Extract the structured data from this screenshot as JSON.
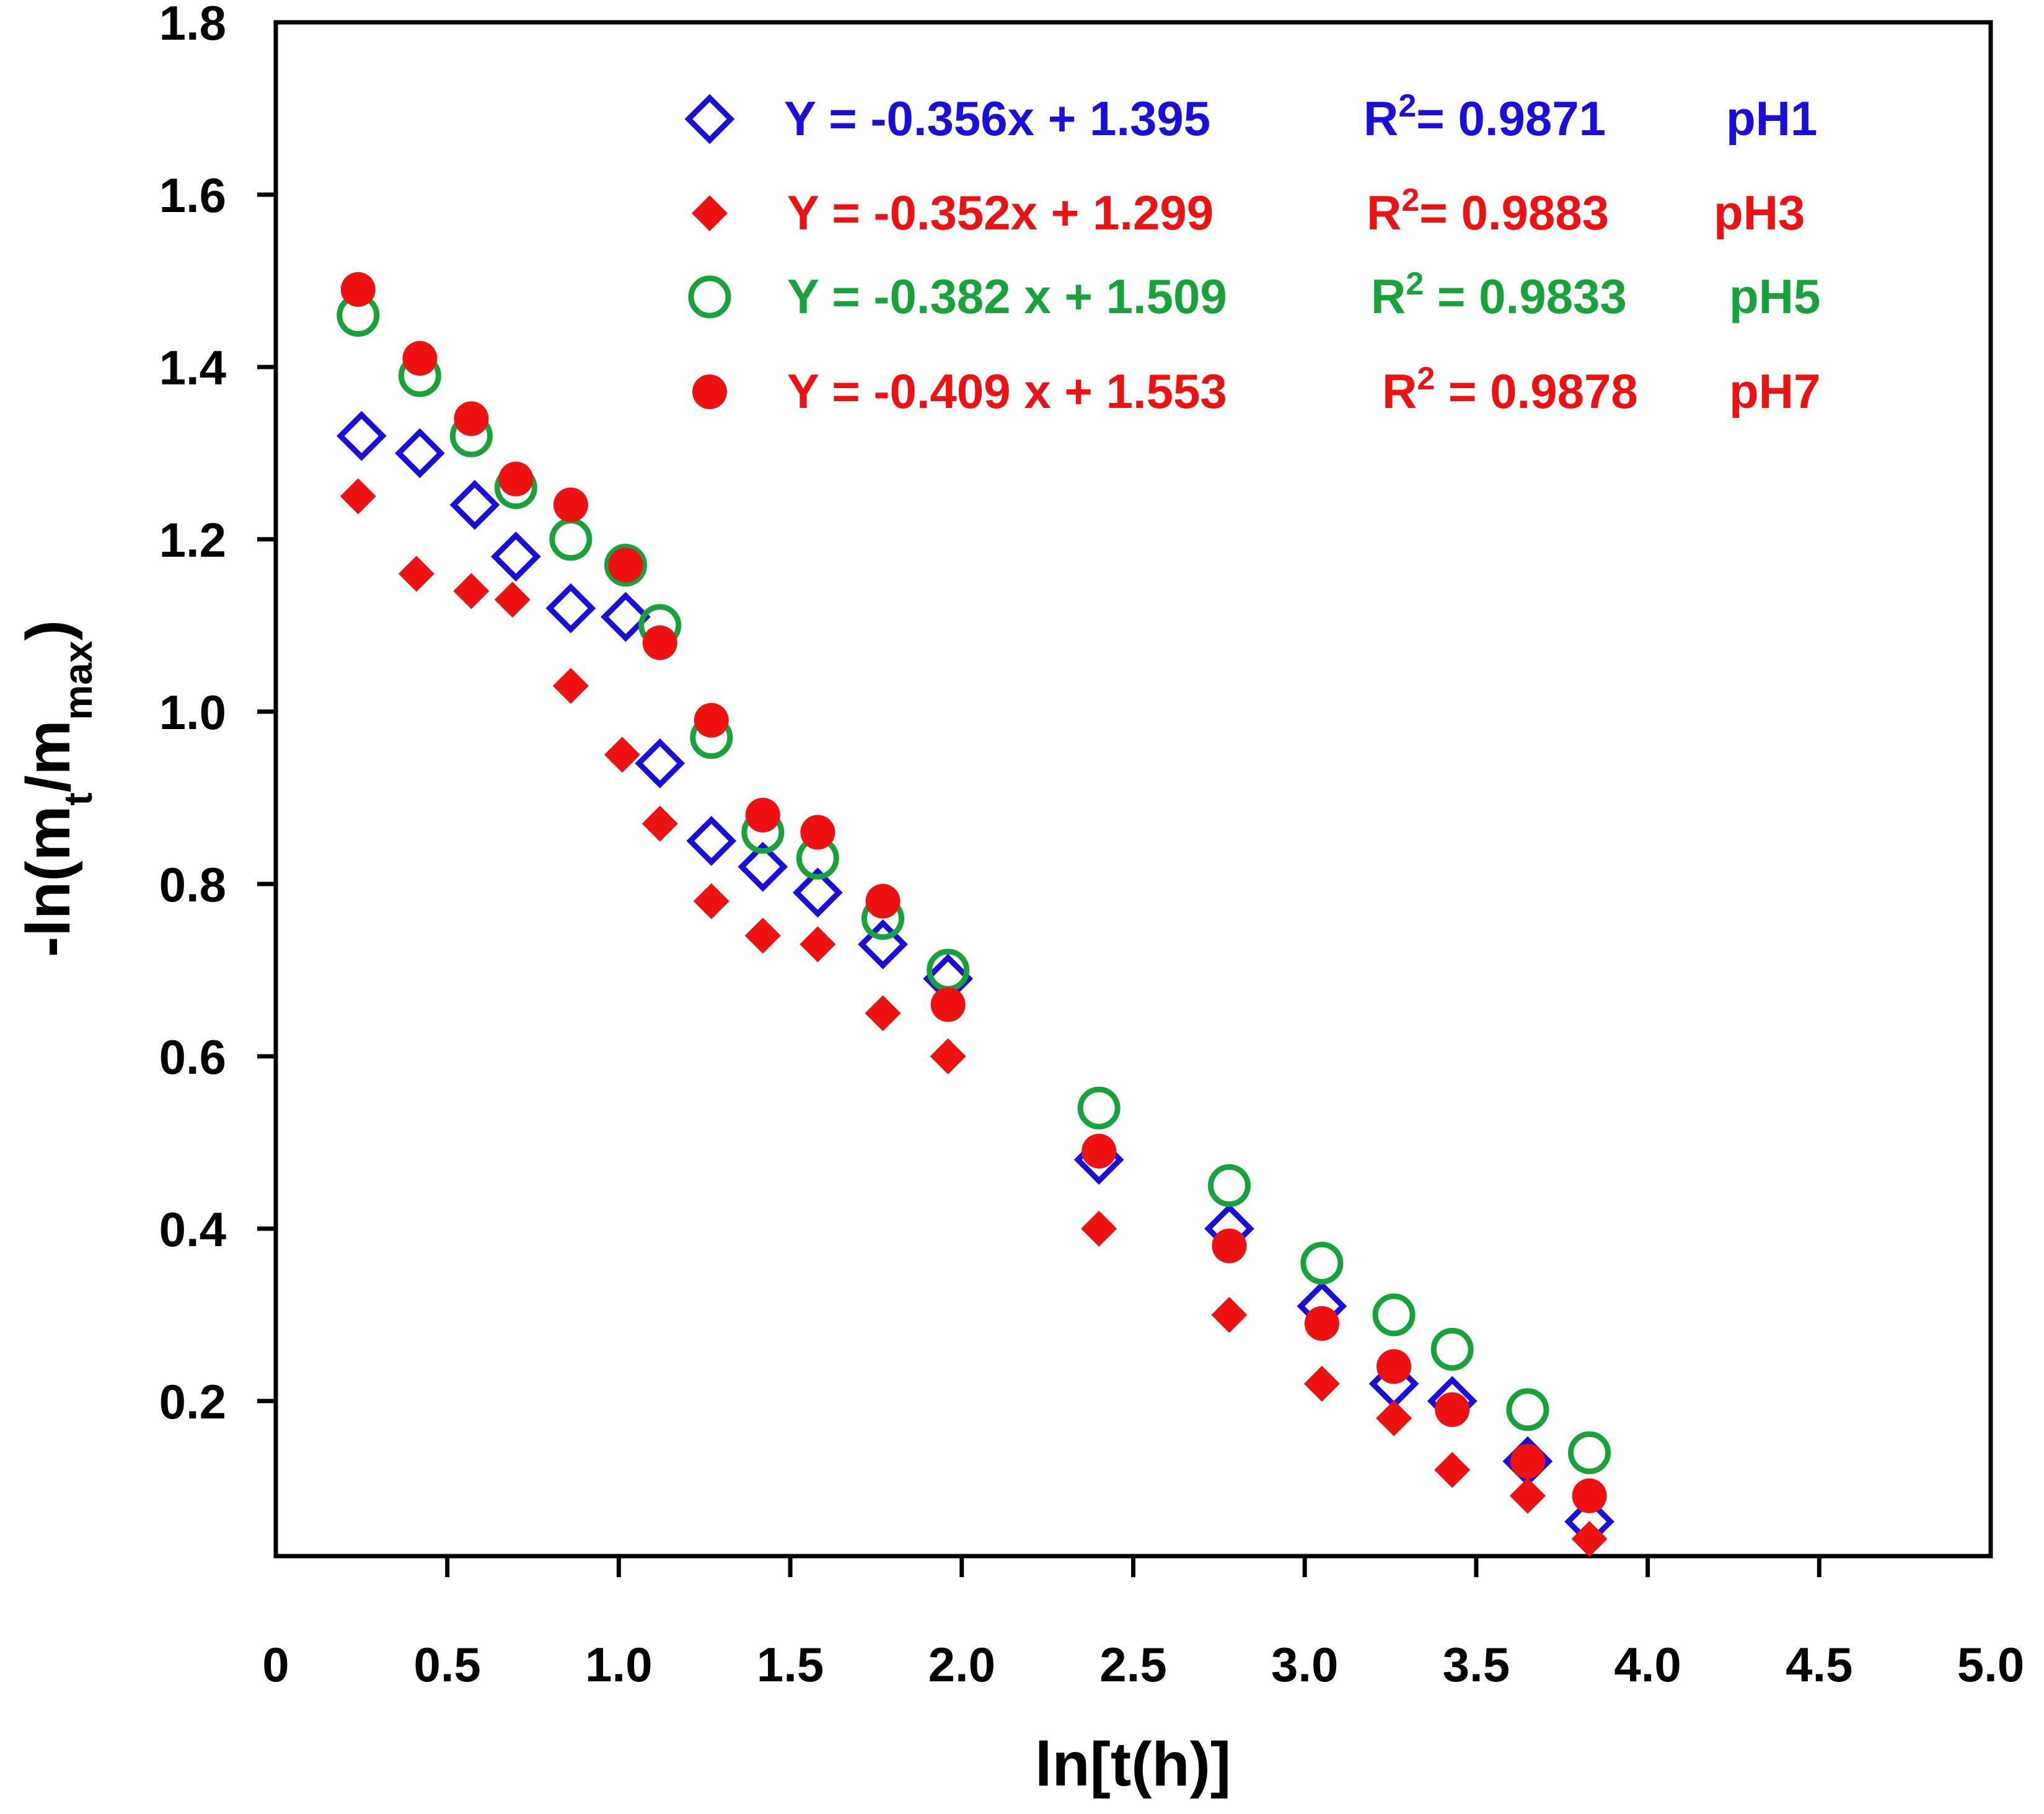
{
  "chart_data": {
    "type": "scatter",
    "xlabel": "ln[t(h)]",
    "ylabel_parts": {
      "pre": "-ln(m",
      "sub1": "t",
      "mid": "/m",
      "sub2": "max",
      "post": ")"
    },
    "xlim": [
      0,
      5.0
    ],
    "ylim": [
      0.02,
      1.8
    ],
    "x_ticks": [
      0,
      0.5,
      1.0,
      1.5,
      2.0,
      2.5,
      3.0,
      3.5,
      4.0,
      4.5,
      5.0
    ],
    "x_tick_labels": [
      "0",
      "0.5",
      "1.0",
      "1.5",
      "2.0",
      "2.5",
      "3.0",
      "3.5",
      "4.0",
      "4.5",
      "5.0"
    ],
    "y_ticks": [
      0.2,
      0.4,
      0.6,
      0.8,
      1.0,
      1.2,
      1.4,
      1.6,
      1.8
    ],
    "y_tick_labels": [
      "0.2",
      "0.4",
      "0.6",
      "0.8",
      "1.0",
      "1.2",
      "1.4",
      "1.6",
      "1.8"
    ],
    "grid": false,
    "legend_position": "top-right",
    "series": [
      {
        "name": "pH1",
        "marker": "diamond-open",
        "color": "#1a0fd9",
        "equation": "Y = -0.356x + 1.395",
        "r2_value": "= 0.9871",
        "x": [
          0.25,
          0.42,
          0.58,
          0.7,
          0.86,
          1.02,
          1.12,
          1.27,
          1.42,
          1.58,
          1.77,
          1.96,
          2.4,
          2.78,
          3.05,
          3.26,
          3.43,
          3.65,
          3.83
        ],
        "y": [
          1.32,
          1.3,
          1.24,
          1.18,
          1.12,
          1.11,
          0.94,
          0.85,
          0.82,
          0.79,
          0.73,
          0.69,
          0.48,
          0.4,
          0.31,
          0.22,
          0.2,
          0.13,
          0.06
        ]
      },
      {
        "name": "pH3",
        "marker": "diamond-filled",
        "color": "#ee1111",
        "equation": "Y = -0.352x + 1.299",
        "r2_value": "= 0.9883",
        "x": [
          0.24,
          0.41,
          0.57,
          0.69,
          0.86,
          1.01,
          1.12,
          1.27,
          1.42,
          1.58,
          1.77,
          1.96,
          2.4,
          2.78,
          3.05,
          3.26,
          3.43,
          3.65,
          3.83
        ],
        "y": [
          1.25,
          1.16,
          1.14,
          1.13,
          1.03,
          0.95,
          0.87,
          0.78,
          0.74,
          0.73,
          0.65,
          0.6,
          0.4,
          0.3,
          0.22,
          0.18,
          0.12,
          0.09,
          0.04
        ]
      },
      {
        "name": "pH5",
        "marker": "circle-open",
        "color": "#17a33a",
        "equation": "Y = -0.382 x + 1.509",
        "r2_value": " = 0.9833",
        "x": [
          0.24,
          0.42,
          0.57,
          0.7,
          0.86,
          1.02,
          1.12,
          1.27,
          1.42,
          1.58,
          1.77,
          1.96,
          2.4,
          2.78,
          3.05,
          3.26,
          3.43,
          3.65,
          3.83
        ],
        "y": [
          1.46,
          1.39,
          1.32,
          1.26,
          1.2,
          1.17,
          1.1,
          0.97,
          0.86,
          0.83,
          0.76,
          0.7,
          0.54,
          0.45,
          0.36,
          0.3,
          0.26,
          0.19,
          0.14
        ]
      },
      {
        "name": "pH7",
        "marker": "circle-filled",
        "color": "#ee1111",
        "equation": "Y = -0.409 x + 1.553",
        "r2_value": " = 0.9878",
        "x": [
          0.24,
          0.42,
          0.57,
          0.7,
          0.86,
          1.02,
          1.12,
          1.27,
          1.42,
          1.58,
          1.77,
          1.96,
          2.4,
          2.78,
          3.05,
          3.26,
          3.43,
          3.65,
          3.83
        ],
        "y": [
          1.49,
          1.41,
          1.34,
          1.27,
          1.24,
          1.17,
          1.08,
          0.99,
          0.88,
          0.86,
          0.78,
          0.66,
          0.49,
          0.38,
          0.29,
          0.24,
          0.19,
          0.13,
          0.09
        ]
      }
    ]
  }
}
